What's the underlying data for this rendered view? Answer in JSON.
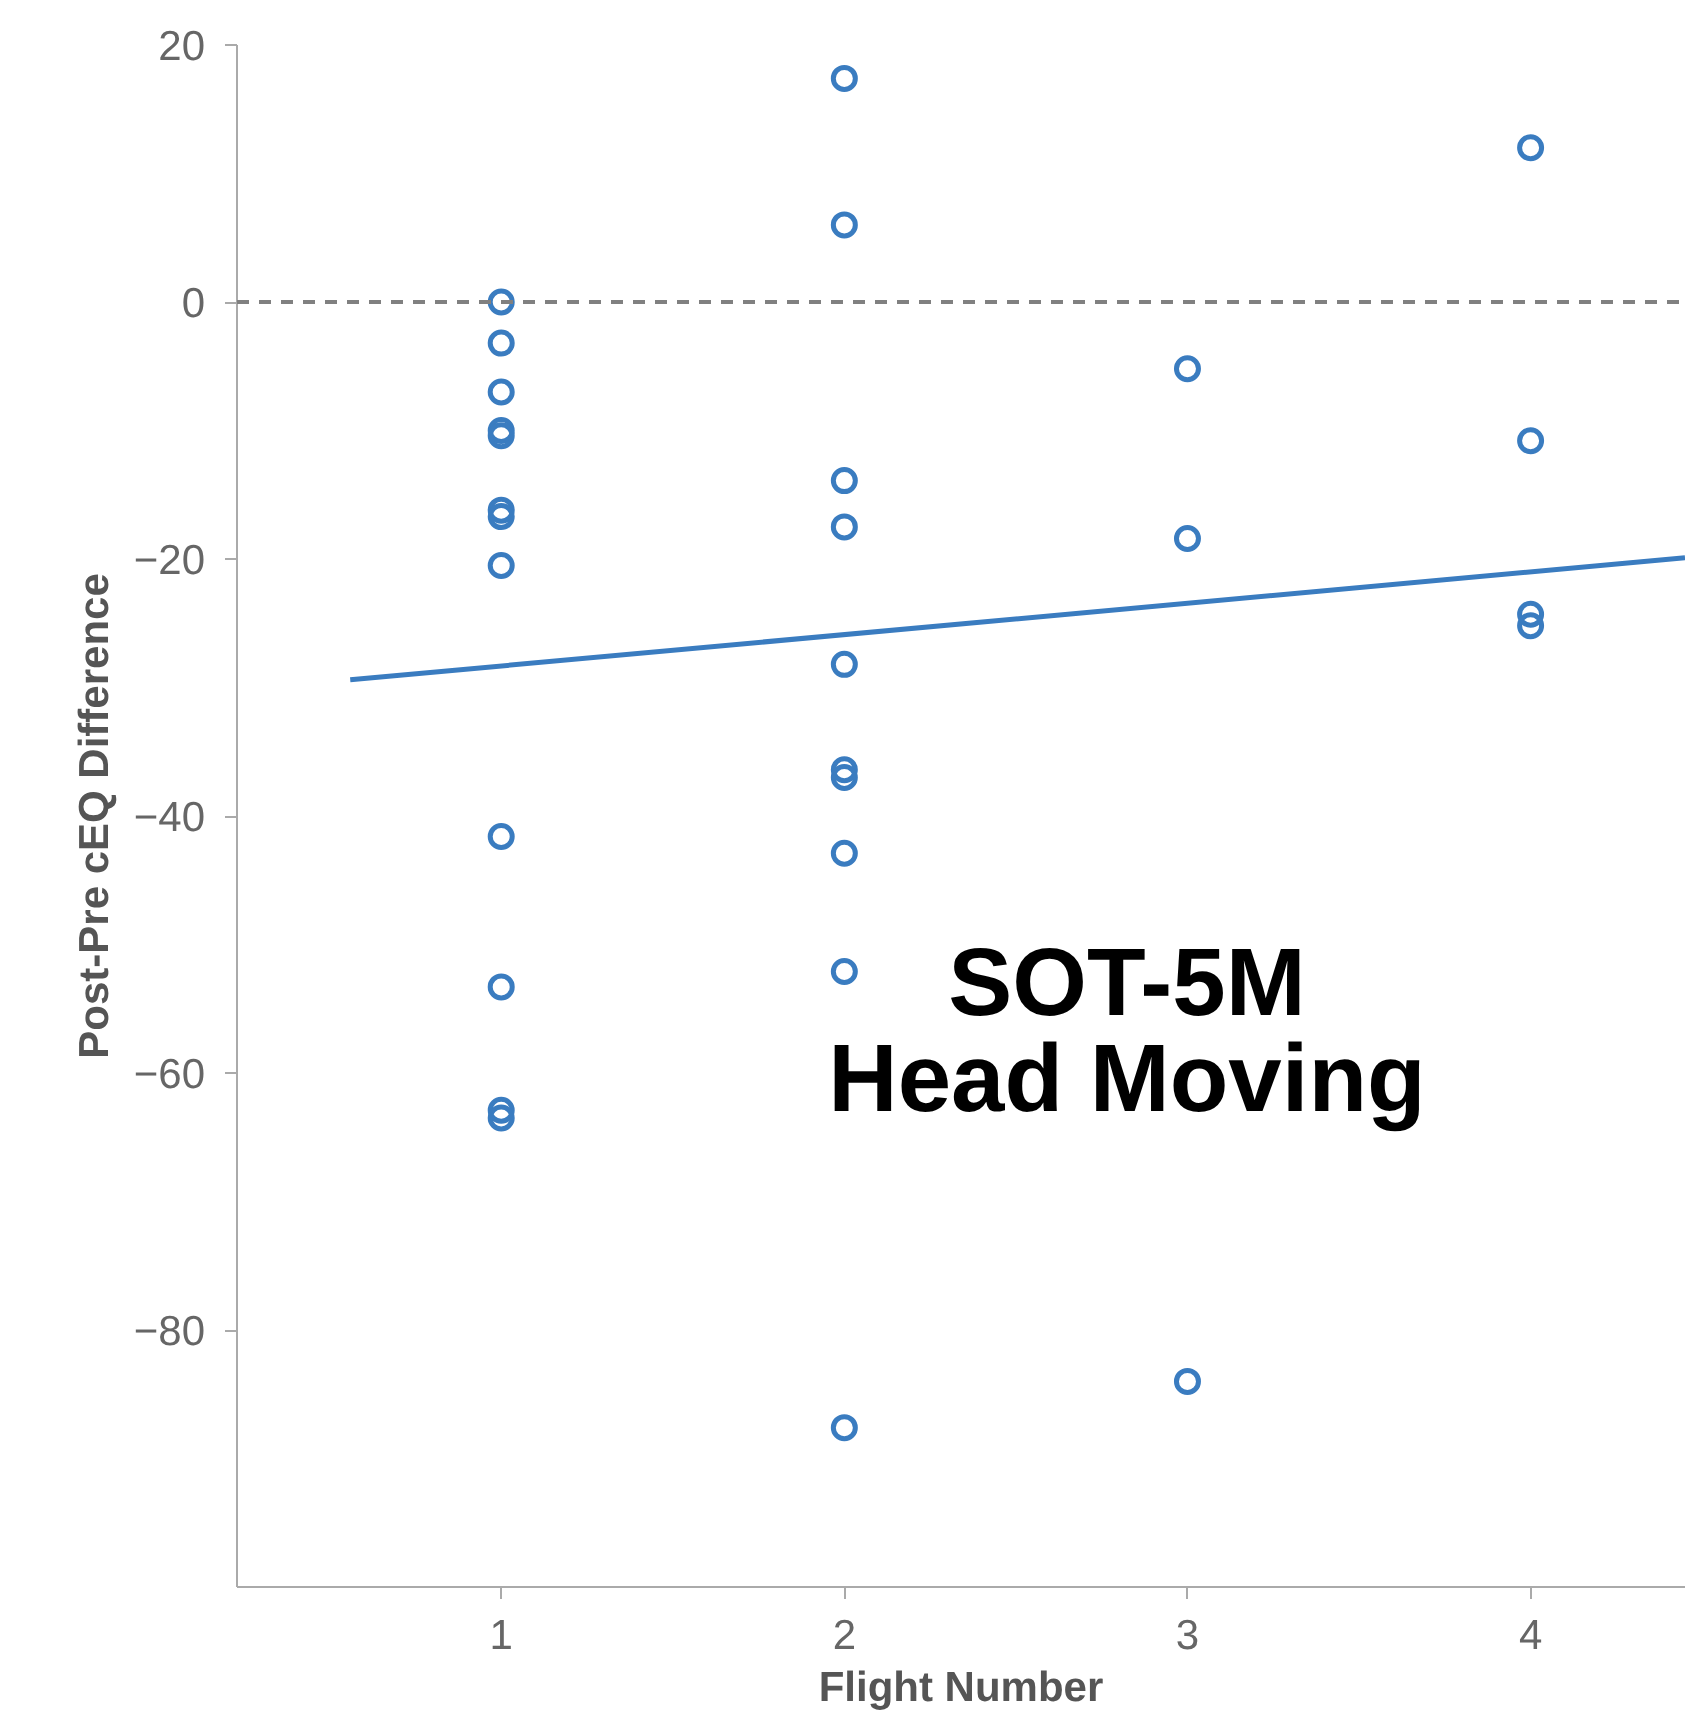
{
  "chart_data": {
    "type": "scatter",
    "xlabel": "Flight Number",
    "ylabel": "Post-Pre cEQ Difference",
    "xlim": [
      0.23,
      4.45
    ],
    "ylim": [
      -100,
      20
    ],
    "xticks": [
      1,
      2,
      3,
      4
    ],
    "yticks": [
      -80,
      -60,
      -40,
      -20,
      0,
      20
    ],
    "series": [
      {
        "color": "#3a7cc0",
        "marker": "circle",
        "x": [
          1,
          1,
          1,
          1,
          1,
          1,
          1,
          1,
          1,
          1,
          1,
          1,
          2,
          2,
          2,
          2,
          2,
          2,
          2,
          2,
          2,
          2,
          3,
          3,
          3,
          4,
          4,
          4,
          4
        ],
        "values": [
          0,
          -3.2,
          -7.0,
          -10.0,
          -10.4,
          -16.2,
          -16.7,
          -20.5,
          -41.6,
          -53.3,
          -62.9,
          -63.5,
          17.4,
          6.0,
          -13.9,
          -17.5,
          -28.2,
          -36.4,
          -37.0,
          -42.9,
          -52.1,
          -87.6,
          -5.2,
          -18.4,
          -84.0,
          12.0,
          -10.8,
          -24.3,
          -25.2
        ]
      },
      {
        "type": "line",
        "color": "#3a7cc0",
        "x": [
          0.56,
          4.45
        ],
        "values": [
          -29.4,
          -19.9
        ]
      }
    ],
    "ref_lines": [
      {
        "axis": "y",
        "value": 0,
        "color": "#808080",
        "line_style": "dashed"
      }
    ],
    "annotations": [
      "SOT-5M",
      "Head Moving"
    ]
  }
}
